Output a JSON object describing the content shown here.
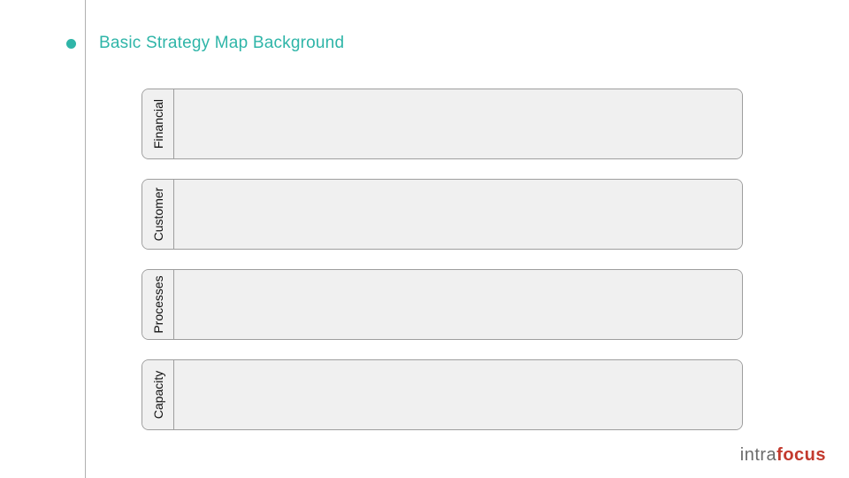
{
  "title": "Basic Strategy Map Background",
  "accent_color": "#2fb5a8",
  "row_bg": "#f0f0f0",
  "border_color": "#9e9e9e",
  "perspectives": [
    {
      "label": "Financial"
    },
    {
      "label": "Customer"
    },
    {
      "label": "Processes"
    },
    {
      "label": "Capacity"
    }
  ],
  "logo": {
    "part1": "intra",
    "part2": "focus",
    "color1": "#6b6b6b",
    "color2": "#c33a2e"
  }
}
